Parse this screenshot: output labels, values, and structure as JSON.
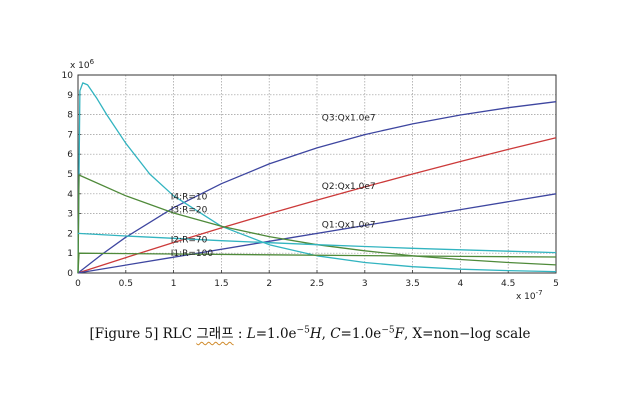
{
  "chart_data": {
    "type": "line",
    "x_tick_labels": [
      "0",
      "0.5",
      "1",
      "1.5",
      "2",
      "2.5",
      "3",
      "3.5",
      "4",
      "4.5",
      "5"
    ],
    "y_tick_labels": [
      "0",
      "1",
      "2",
      "3",
      "4",
      "5",
      "6",
      "7",
      "8",
      "9",
      "10"
    ],
    "x_multiplier": "x 10",
    "x_multiplier_exp": "-7",
    "y_multiplier": "x 10",
    "y_multiplier_exp": "6",
    "xlim": [
      0,
      5
    ],
    "ylim": [
      0,
      10
    ],
    "grid": true,
    "colors": {
      "red": "#cc3a3a",
      "blue": "#3e46a0",
      "green": "#4f8a3a",
      "cyan": "#32b4c0"
    },
    "series": [
      {
        "name": "Q3:Qx1.0e7",
        "color": "#3e46a0",
        "x": [
          0,
          0.25,
          0.5,
          1,
          1.5,
          2,
          2.5,
          3,
          3.5,
          4,
          4.5,
          5
        ],
        "y": [
          0,
          0.94,
          1.81,
          3.3,
          4.51,
          5.51,
          6.32,
          6.99,
          7.53,
          7.98,
          8.35,
          8.65
        ]
      },
      {
        "name": "Q2:Qx1.0e7",
        "color": "#cc3a3a",
        "x": [
          0,
          0.5,
          1,
          1.5,
          2,
          2.5,
          3,
          3.5,
          4,
          4.5,
          5
        ],
        "y": [
          0,
          0.78,
          1.54,
          2.28,
          2.99,
          3.68,
          4.35,
          5.0,
          5.63,
          6.24,
          6.83
        ]
      },
      {
        "name": "Q1:Qx1.0e7",
        "color": "#3e46a0",
        "x": [
          0,
          1,
          2,
          3,
          4,
          5
        ],
        "y": [
          0,
          0.8,
          1.6,
          2.4,
          3.2,
          4.0
        ]
      },
      {
        "name": "I4:R=10",
        "color": "#32b4c0",
        "x": [
          0,
          0.02,
          0.05,
          0.1,
          0.2,
          0.3,
          0.5,
          0.75,
          1,
          1.5,
          2,
          2.5,
          3,
          3.5,
          4,
          4.5,
          5
        ],
        "y": [
          0,
          9.2,
          9.6,
          9.5,
          8.8,
          8.0,
          6.55,
          5.0,
          3.9,
          2.36,
          1.43,
          0.87,
          0.53,
          0.32,
          0.19,
          0.12,
          0.07
        ]
      },
      {
        "name": "I3:R=20",
        "color": "#4f8a3a",
        "x": [
          0,
          0.01,
          0.5,
          1,
          1.5,
          2,
          2.5,
          3,
          3.5,
          4,
          4.5,
          5
        ],
        "y": [
          0,
          4.95,
          3.9,
          3.03,
          2.36,
          1.84,
          1.43,
          1.12,
          0.87,
          0.68,
          0.53,
          0.41
        ]
      },
      {
        "name": "I2:R=70",
        "color": "#32b4c0",
        "x": [
          0,
          0.5,
          1,
          1.5,
          2,
          2.5,
          3,
          3.5,
          4,
          4.5,
          5
        ],
        "y": [
          2.0,
          1.87,
          1.75,
          1.63,
          1.53,
          1.43,
          1.34,
          1.25,
          1.17,
          1.1,
          1.03
        ]
      },
      {
        "name": "I1:R=100",
        "color": "#4f8a3a",
        "x": [
          0,
          0.01,
          1,
          2,
          3,
          4,
          5
        ],
        "y": [
          0,
          1.0,
          0.96,
          0.92,
          0.88,
          0.84,
          0.81
        ]
      }
    ],
    "curve_labels": [
      {
        "text": "Q3:Qx1.0e7",
        "x": 2.55,
        "y": 7.7
      },
      {
        "text": "Q2:Qx1.0e7",
        "x": 2.55,
        "y": 4.25
      },
      {
        "text": "Q1:Qx1.0e7",
        "x": 2.55,
        "y": 2.3
      },
      {
        "text": "I4:R=10",
        "x": 0.97,
        "y": 3.7
      },
      {
        "text": "I3:R=20",
        "x": 0.97,
        "y": 3.05
      },
      {
        "text": "I2:R=70",
        "x": 0.97,
        "y": 1.55
      },
      {
        "text": "I1:R=100",
        "x": 0.97,
        "y": 0.85
      }
    ]
  },
  "caption": {
    "prefix": "[Figure 5] RLC ",
    "korean": "그래프",
    "colon": " : ",
    "l_var": "L",
    "l_eq": "=1.0e",
    "l_exp": "−5",
    "l_unit": "H",
    "sep": ",  ",
    "c_var": "C",
    "c_eq": "=1.0e",
    "c_exp": "−5",
    "c_unit": "F",
    "suffix": ", X=non−log scale"
  }
}
